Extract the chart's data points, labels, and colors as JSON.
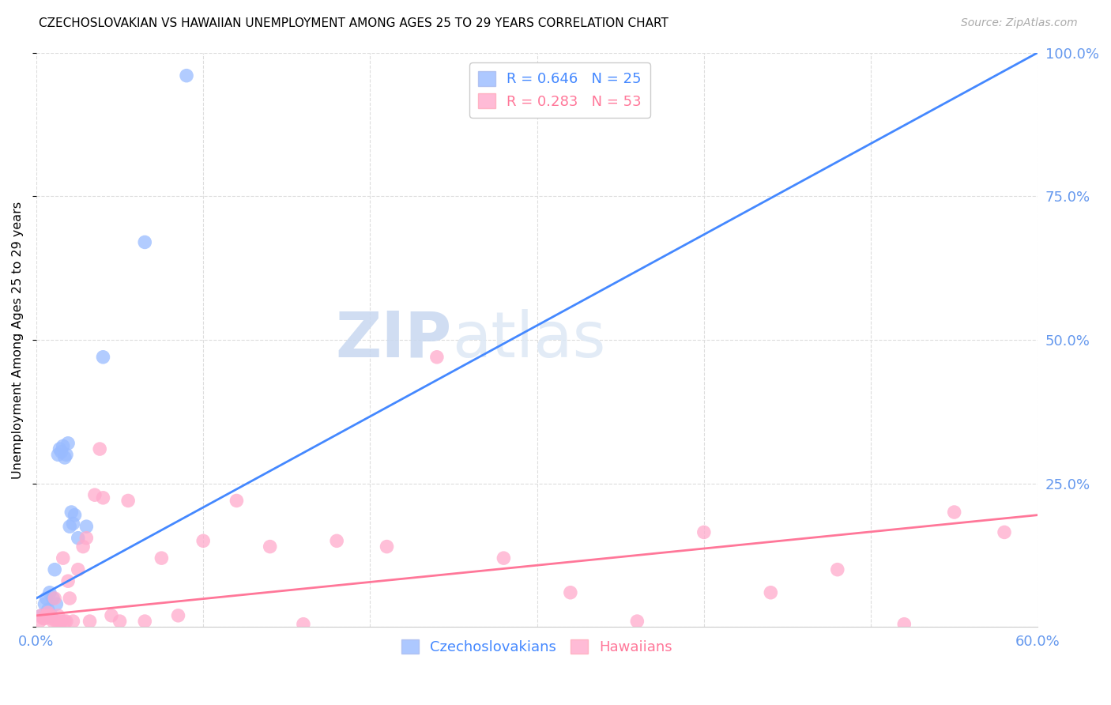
{
  "title": "CZECHOSLOVAKIAN VS HAWAIIAN UNEMPLOYMENT AMONG AGES 25 TO 29 YEARS CORRELATION CHART",
  "source": "Source: ZipAtlas.com",
  "ylabel": "Unemployment Among Ages 25 to 29 years",
  "xlim": [
    0.0,
    0.6
  ],
  "ylim": [
    0.0,
    1.0
  ],
  "xticks": [
    0.0,
    0.1,
    0.2,
    0.3,
    0.4,
    0.5,
    0.6
  ],
  "yticks": [
    0.25,
    0.5,
    0.75,
    1.0
  ],
  "ytick_labels": [
    "25.0%",
    "50.0%",
    "75.0%",
    "100.0%"
  ],
  "czecho_color": "#99bbff",
  "hawaii_color": "#ffaacc",
  "czecho_line_color": "#4488ff",
  "hawaii_line_color": "#ff7799",
  "axis_color": "#6699ee",
  "grid_color": "#dddddd",
  "watermark_zip": "ZIP",
  "watermark_atlas": "atlas",
  "czecho_x": [
    0.003,
    0.005,
    0.006,
    0.007,
    0.008,
    0.009,
    0.01,
    0.011,
    0.012,
    0.013,
    0.014,
    0.015,
    0.016,
    0.017,
    0.018,
    0.019,
    0.02,
    0.021,
    0.022,
    0.023,
    0.025,
    0.03,
    0.04,
    0.065,
    0.09
  ],
  "czecho_y": [
    0.02,
    0.04,
    0.05,
    0.03,
    0.06,
    0.02,
    0.05,
    0.1,
    0.04,
    0.3,
    0.31,
    0.305,
    0.315,
    0.295,
    0.3,
    0.32,
    0.175,
    0.2,
    0.18,
    0.195,
    0.155,
    0.175,
    0.47,
    0.67,
    0.96
  ],
  "hawaii_x": [
    0.002,
    0.003,
    0.004,
    0.005,
    0.006,
    0.007,
    0.008,
    0.009,
    0.01,
    0.011,
    0.012,
    0.013,
    0.014,
    0.015,
    0.016,
    0.017,
    0.018,
    0.019,
    0.02,
    0.022,
    0.025,
    0.028,
    0.03,
    0.032,
    0.035,
    0.038,
    0.04,
    0.045,
    0.05,
    0.055,
    0.065,
    0.075,
    0.085,
    0.1,
    0.12,
    0.14,
    0.16,
    0.18,
    0.21,
    0.24,
    0.28,
    0.32,
    0.36,
    0.4,
    0.44,
    0.48,
    0.52,
    0.55,
    0.58
  ],
  "hawaii_y": [
    0.01,
    0.02,
    0.015,
    0.015,
    0.02,
    0.025,
    0.02,
    0.015,
    0.01,
    0.05,
    0.01,
    0.02,
    0.005,
    0.01,
    0.12,
    0.01,
    0.01,
    0.08,
    0.05,
    0.01,
    0.1,
    0.14,
    0.155,
    0.01,
    0.23,
    0.31,
    0.225,
    0.02,
    0.01,
    0.22,
    0.01,
    0.12,
    0.02,
    0.15,
    0.22,
    0.14,
    0.005,
    0.15,
    0.14,
    0.47,
    0.12,
    0.06,
    0.01,
    0.165,
    0.06,
    0.1,
    0.005,
    0.2,
    0.165
  ],
  "czecho_line_x0": 0.0,
  "czecho_line_y0": 0.05,
  "czecho_line_x1": 0.6,
  "czecho_line_y1": 1.0,
  "hawaii_line_x0": 0.0,
  "hawaii_line_y0": 0.02,
  "hawaii_line_x1": 0.6,
  "hawaii_line_y1": 0.195
}
